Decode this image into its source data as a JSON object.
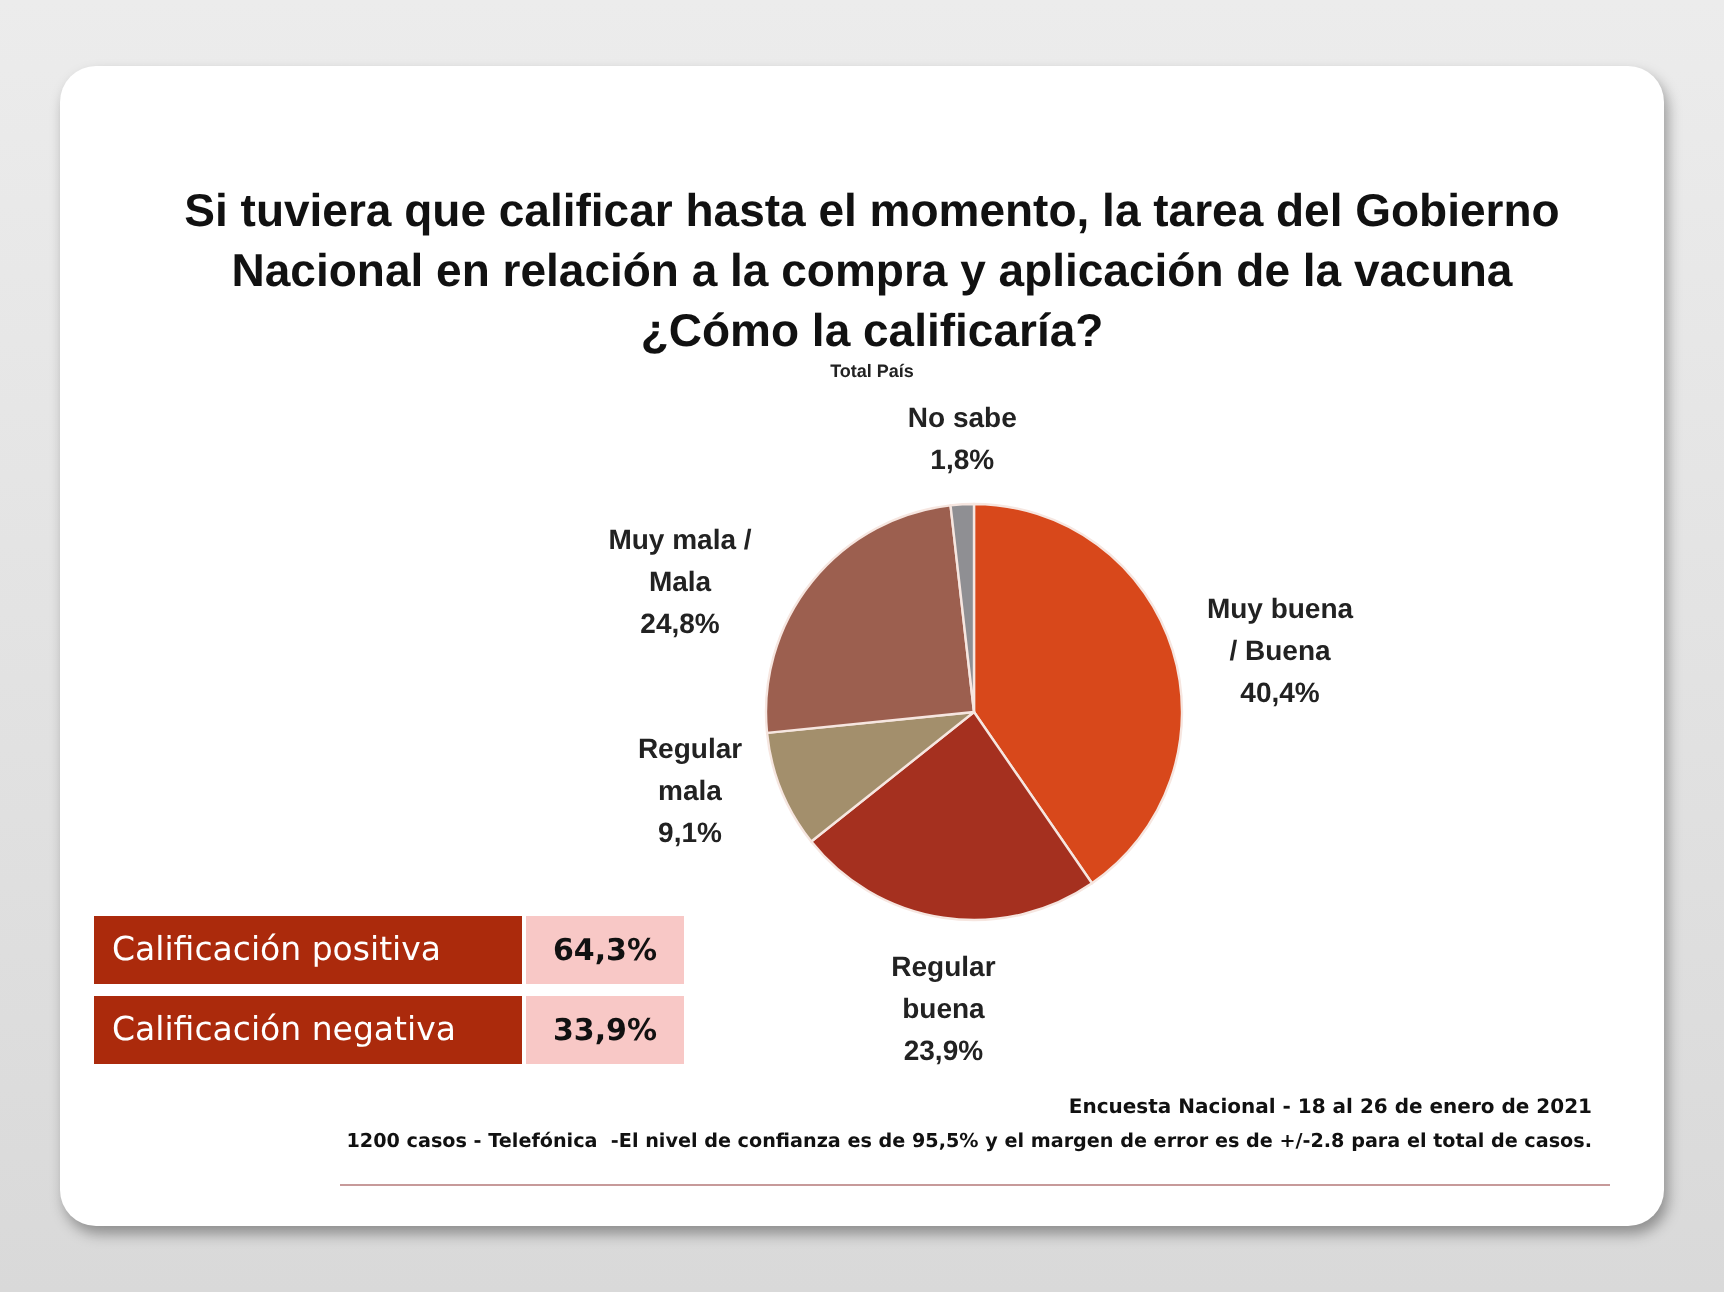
{
  "chart_data": {
    "type": "pie",
    "title": "Si tuviera que calificar hasta el momento, la tarea del Gobierno\nNacional en relación a la compra y aplicación de la vacuna\n¿Cómo la calificaría?",
    "subtitle": "Total País",
    "categories": [
      "Muy buena\n/ Buena",
      "Regular\nbuena",
      "Regular\nmala",
      "Muy mala /\nMala",
      "No sabe"
    ],
    "values": [
      40.4,
      23.9,
      9.1,
      24.8,
      1.8
    ],
    "colors": [
      "#d8481b",
      "#a5301f",
      "#a38f6c",
      "#9c5f4f",
      "#8f8f93"
    ],
    "value_labels": [
      "40,4%",
      "23,9%",
      "9,1%",
      "24,8%",
      "1,8%"
    ],
    "annotations": [
      "Calificación positiva",
      "64,3%",
      "Calificación negativa",
      "33,9%",
      "Encuesta Nacional - 18 al 26 de enero de 2021",
      "1200 casos - Telefónica  -El nivel de confianza es de 95,5% y el margen de error es de +/-2.8 para el total de casos."
    ]
  }
}
